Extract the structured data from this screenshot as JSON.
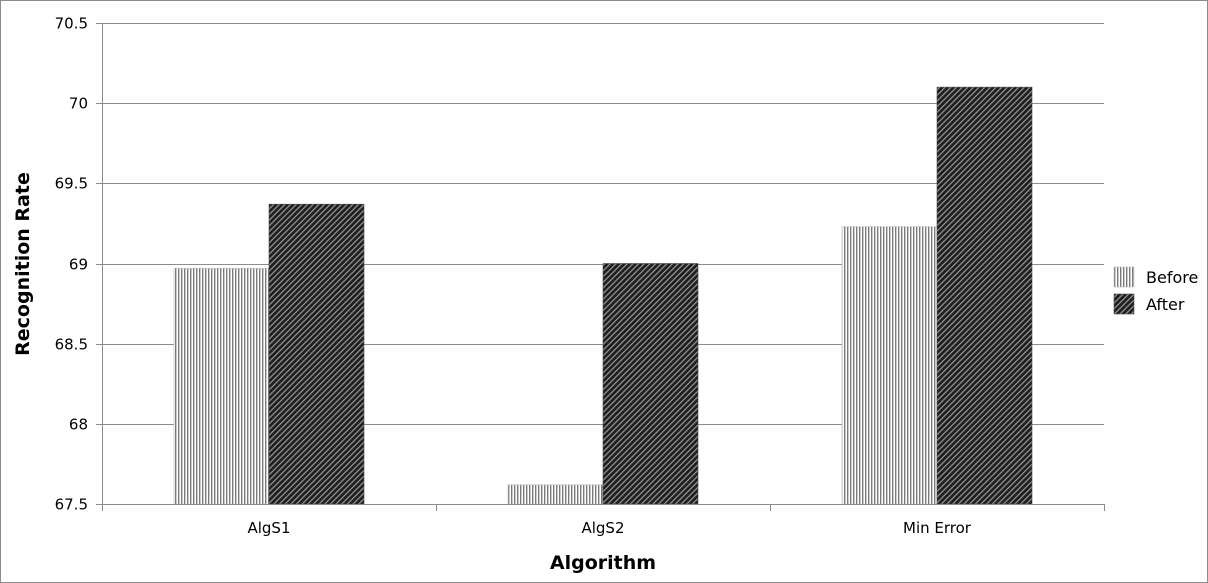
{
  "chart_data": {
    "type": "bar",
    "title": "",
    "xlabel": "Algorithm",
    "ylabel": "Recognition Rate",
    "categories": [
      "AlgS1",
      "AlgS2",
      "Min Error"
    ],
    "series": [
      {
        "name": "Before",
        "values": [
          68.97,
          67.62,
          69.23
        ],
        "pattern": "vertical-stripes"
      },
      {
        "name": "After",
        "values": [
          69.37,
          69.0,
          70.1
        ],
        "pattern": "diagonal-dark"
      }
    ],
    "ylim": [
      67.5,
      70.5
    ],
    "yticks": [
      67.5,
      68,
      68.5,
      69,
      69.5,
      70,
      70.5
    ],
    "ytick_labels": [
      "67.5",
      "68",
      "68.5",
      "69",
      "69.5",
      "70",
      "70.5"
    ],
    "grid": true,
    "legend_position": "right"
  }
}
